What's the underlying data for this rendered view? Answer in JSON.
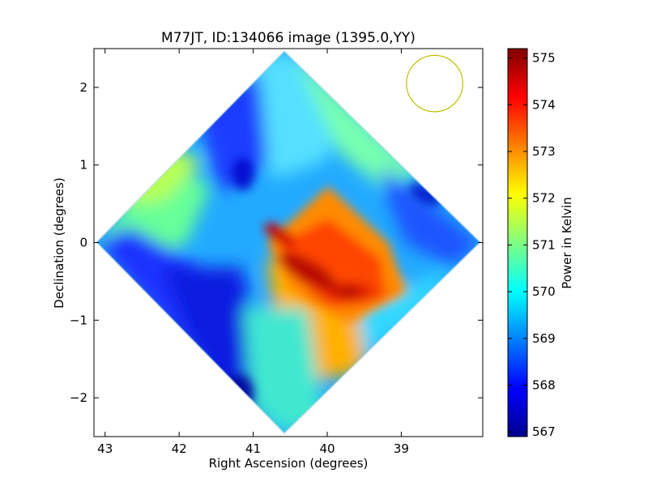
{
  "chart_data": {
    "type": "heatmap",
    "title": "M77JT, ID:134066 image (1395.0,YY)",
    "xlabel": "Right Ascension (degrees)",
    "ylabel": "Declination (degrees)",
    "colorbar_label": "Power in Kelvin",
    "x_axis_inverted": true,
    "xlim": [
      43.15,
      37.9
    ],
    "ylim": [
      -2.5,
      2.5
    ],
    "x_ticks": [
      43,
      42,
      41,
      40,
      39
    ],
    "x_tick_labels": [
      "43",
      "42",
      "41",
      "40",
      "39"
    ],
    "y_ticks": [
      2,
      1,
      0,
      -1,
      -2
    ],
    "y_tick_labels": [
      "2",
      "1",
      "0",
      "−1",
      "−2"
    ],
    "colorbar_range": [
      566.9,
      575.2
    ],
    "colorbar_ticks": [
      575,
      574,
      573,
      572,
      571,
      570,
      569,
      568,
      567
    ],
    "colorbar_tick_labels": [
      "575",
      "574",
      "573",
      "572",
      "571",
      "570",
      "569",
      "568",
      "567"
    ],
    "colormap": "jet",
    "footprint_center": [
      40.55,
      0.0
    ],
    "footprint_half_diagonal_deg": 2.55,
    "beam_circle": {
      "center": [
        38.55,
        2.05
      ],
      "radius_deg": 0.38,
      "color": "#bfbf00"
    },
    "approx_values": [
      {
        "ra": 42.8,
        "dec": 0.3,
        "value": 571.5
      },
      {
        "ra": 41.8,
        "dec": 1.2,
        "value": 569.5
      },
      {
        "ra": 41.3,
        "dec": 0.9,
        "value": 567.8
      },
      {
        "ra": 40.7,
        "dec": 2.1,
        "value": 570.2
      },
      {
        "ra": 39.8,
        "dec": 1.2,
        "value": 570.5
      },
      {
        "ra": 39.0,
        "dec": 0.6,
        "value": 568.2
      },
      {
        "ra": 40.0,
        "dec": -0.3,
        "value": 573.8
      },
      {
        "ra": 40.5,
        "dec": -0.4,
        "value": 574.7
      },
      {
        "ra": 39.7,
        "dec": -0.6,
        "value": 575.0
      },
      {
        "ra": 41.7,
        "dec": -0.7,
        "value": 567.9
      },
      {
        "ra": 41.2,
        "dec": -2.0,
        "value": 567.3
      },
      {
        "ra": 40.4,
        "dec": -1.6,
        "value": 570.2
      }
    ]
  }
}
